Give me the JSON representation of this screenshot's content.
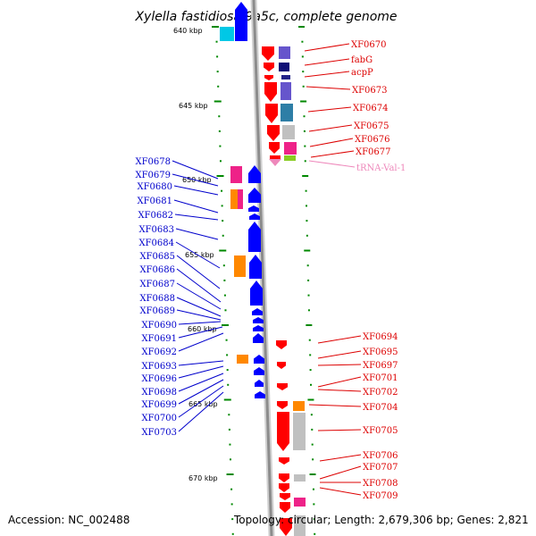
{
  "title": "Xylella fastidiosa 9a5c, complete genome",
  "footer": {
    "accession": "Accession: NC_002488",
    "stats": "Topology: circular; Length: 2,679,306 bp; Genes: 2,821"
  },
  "scale_labels": [
    "640 kbp",
    "645 kbp",
    "650 kbp",
    "655 kbp",
    "660 kbp",
    "665 kbp",
    "670 kbp"
  ],
  "right_labels": [
    "XF0670",
    "fabG",
    "acpP",
    "XF0673",
    "XF0674",
    "XF0675",
    "XF0676",
    "XF0677",
    "tRNA-Val-1",
    "XF0694",
    "XF0695",
    "XF0697",
    "XF0701",
    "XF0702",
    "XF0704",
    "XF0705",
    "XF0706",
    "XF0707",
    "XF0708",
    "XF0709"
  ],
  "left_labels": [
    "XF0678",
    "XF0679",
    "XF0680",
    "XF0681",
    "XF0682",
    "XF0683",
    "XF0684",
    "XF0685",
    "XF0686",
    "XF0687",
    "XF0688",
    "XF0689",
    "XF0690",
    "XF0691",
    "XF0692",
    "XF0693",
    "XF0696",
    "XF0698",
    "XF0699",
    "XF0700",
    "XF0703"
  ],
  "colors": {
    "forward_strand": "#ff0000",
    "reverse_strand": "#0000ff",
    "trna": "#ee88bb",
    "backbone": "#888888",
    "ticks": "#008800"
  }
}
